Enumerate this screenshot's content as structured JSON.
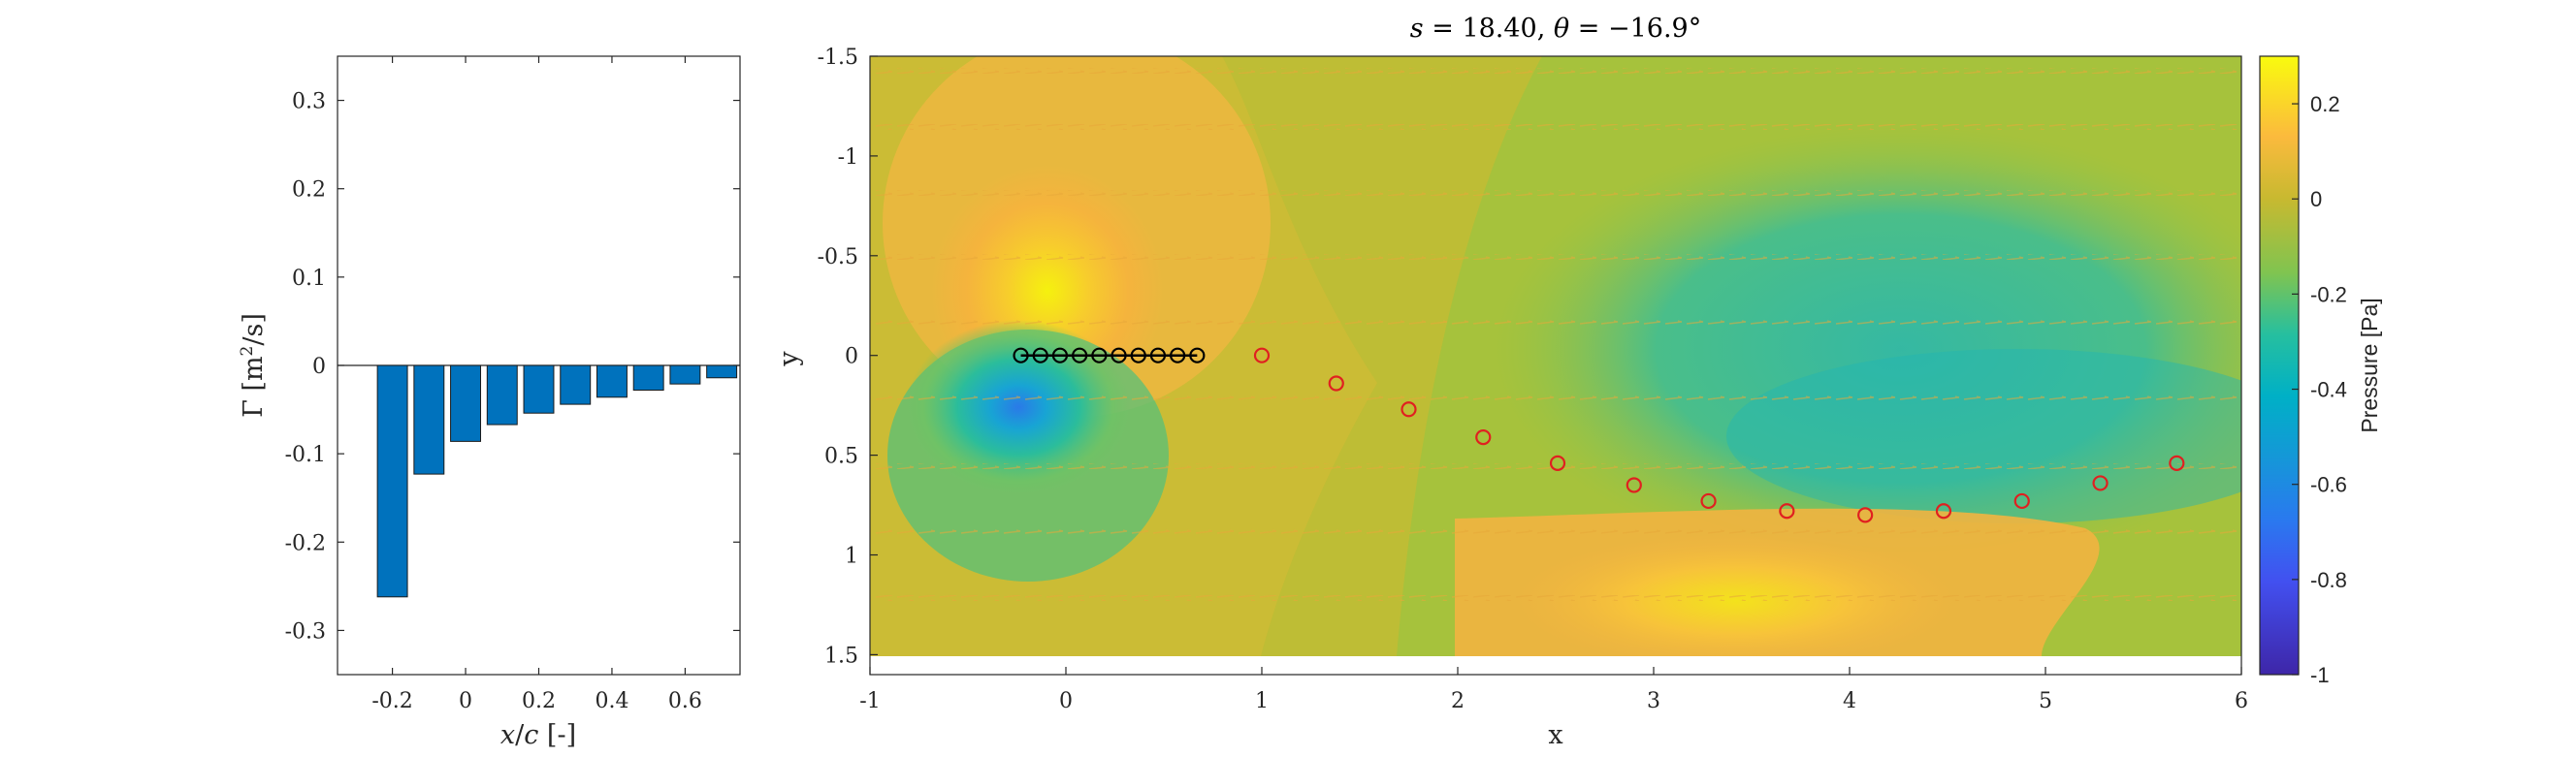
{
  "chart_data": [
    {
      "type": "bar",
      "xlabel": "x/c [-]",
      "ylabel": "Γ [m²/s]",
      "xlim": [
        -0.35,
        0.75
      ],
      "ylim": [
        -0.35,
        0.35
      ],
      "xticks": [
        "-0.2",
        "0",
        "0.2",
        "0.4",
        "0.6"
      ],
      "yticks": [
        "0.3",
        "0.2",
        "0.1",
        "0",
        "-0.1",
        "-0.2",
        "-0.3"
      ],
      "x": [
        -0.2,
        -0.1,
        0.0,
        0.1,
        0.2,
        0.3,
        0.4,
        0.5,
        0.6,
        0.7
      ],
      "values": [
        -0.262,
        -0.123,
        -0.086,
        -0.067,
        -0.054,
        -0.044,
        -0.036,
        -0.028,
        -0.021,
        -0.014
      ],
      "bar_color": "#0072BD"
    },
    {
      "type": "heatmap",
      "title": "s = 18.40, θ = −16.9°",
      "xlabel": "x",
      "ylabel": "y",
      "xlim": [
        -1,
        6
      ],
      "ylim": [
        -1.5,
        1.6
      ],
      "y_reversed": true,
      "xticks": [
        "-1",
        "0",
        "1",
        "2",
        "3",
        "4",
        "5",
        "6"
      ],
      "yticks": [
        "-1.5",
        "-1",
        "-0.5",
        "0",
        "0.5",
        "1",
        "1.5"
      ],
      "colorbar": {
        "label": "Pressure [Pa]",
        "range": [
          -1,
          0.3
        ],
        "ticks": [
          "0.2",
          "0",
          "-0.2",
          "-0.4",
          "-0.6",
          "-0.8",
          "-1"
        ],
        "colormap": "parula"
      },
      "bound_vortices": {
        "x": [
          -0.23,
          -0.13,
          -0.03,
          0.07,
          0.17,
          0.27,
          0.37,
          0.47,
          0.57,
          0.67
        ],
        "y": [
          0,
          0,
          0,
          0,
          0,
          0,
          0,
          0,
          0,
          0
        ],
        "color": "#000000"
      },
      "wake_vortices": {
        "x": [
          1.0,
          1.38,
          1.75,
          2.13,
          2.51,
          2.9,
          3.28,
          3.68,
          4.08,
          4.48,
          4.88,
          5.28,
          5.67
        ],
        "y": [
          0.0,
          0.14,
          0.27,
          0.41,
          0.54,
          0.65,
          0.73,
          0.78,
          0.8,
          0.78,
          0.73,
          0.64,
          0.54
        ],
        "color": "#E02020"
      }
    }
  ]
}
